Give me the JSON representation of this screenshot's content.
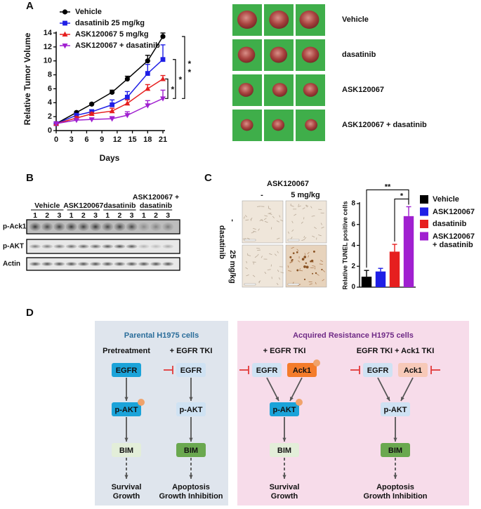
{
  "panel_labels": [
    "A",
    "B",
    "C",
    "D"
  ],
  "chart_data": [
    {
      "type": "line",
      "x": [
        0,
        4,
        7,
        11,
        14,
        18,
        21
      ],
      "xlabel": "Days",
      "ylabel": "Relative Tumor Volume",
      "xlim": [
        0,
        21
      ],
      "xticks": [
        0,
        3,
        6,
        9,
        12,
        15,
        18,
        21
      ],
      "ylim": [
        0,
        14
      ],
      "yticks": [
        0,
        2,
        4,
        6,
        8,
        10,
        12,
        14
      ],
      "legend": "upper left",
      "series": [
        {
          "name": "Vehicle",
          "color": "#000000",
          "marker": "circle",
          "values": [
            1,
            2.6,
            3.8,
            5.5,
            7.4,
            10,
            13.5
          ],
          "errors": [
            0,
            0.1,
            0.15,
            0.3,
            0.4,
            0.8,
            0.5
          ]
        },
        {
          "name": "dasatinib 25 mg/kg",
          "color": "#1f1fe6",
          "marker": "square",
          "values": [
            1,
            2.2,
            2.7,
            3.7,
            4.8,
            8.2,
            10.2
          ],
          "errors": [
            0,
            0.2,
            0.3,
            0.7,
            0.8,
            1.3,
            2.1
          ]
        },
        {
          "name": "ASK120067 5 mg/kg",
          "color": "#e61f1f",
          "marker": "triangle",
          "values": [
            1,
            1.8,
            2.4,
            2.8,
            3.9,
            6,
            7.4
          ],
          "errors": [
            0,
            0.2,
            0.2,
            0.4,
            0.5,
            0.6,
            0.5
          ]
        },
        {
          "name": "ASK120067 + dasatinib",
          "color": "#a020d0",
          "marker": "triangle-down",
          "values": [
            1,
            1.5,
            1.6,
            1.7,
            2.2,
            3.6,
            4.6
          ],
          "errors": [
            0,
            0.1,
            0.2,
            0.3,
            0.5,
            0.7,
            1.2
          ]
        }
      ],
      "annotations": [
        "*",
        "*",
        "**"
      ]
    },
    {
      "type": "bar",
      "ylabel": "Relative TUNEL positive cells",
      "categories": [
        "Vehicle",
        "ASK120067",
        "dasatinib",
        "ASK120067 + dasatinib"
      ],
      "values": [
        1.0,
        1.5,
        3.4,
        6.8
      ],
      "errors": [
        0.6,
        0.3,
        0.7,
        0.9
      ],
      "colors": [
        "#000000",
        "#1f1fe6",
        "#e61f1f",
        "#a020d0"
      ],
      "ylim": [
        0,
        8
      ],
      "yticks": [
        0,
        2,
        4,
        6,
        8
      ],
      "legend": "right",
      "annotations": [
        "**",
        "*"
      ]
    }
  ],
  "tumor_photos": {
    "rows": [
      "Vehicle",
      "dasatinib",
      "ASK120067",
      "ASK120067 + dasatinib"
    ]
  },
  "western_blot": {
    "groups": [
      [
        "Vehicle"
      ],
      [
        "ASK120067"
      ],
      [
        "dasatinib"
      ],
      [
        "ASK120067 +",
        "dasatinib"
      ]
    ],
    "lanes": [
      "1",
      "2",
      "3"
    ],
    "rows": [
      "p-Ack1",
      "p-AKT",
      "Actin"
    ]
  },
  "tunel_images": {
    "column_title": "ASK120067",
    "columns": [
      "-",
      "5 mg/kg"
    ],
    "row_title": "dasatinib",
    "rows": [
      "-",
      "25 mg/kg"
    ]
  },
  "diagram": {
    "panels": [
      {
        "title": "Parental H1975 cells",
        "columns": [
          {
            "heading": "Pretreatment",
            "nodes": [
              {
                "label": "EGFR",
                "color": "#1ba3d9"
              },
              {
                "label": "p-AKT",
                "color": "#1ba3d9",
                "phospho": true
              },
              {
                "label": "BIM",
                "color": "#e3eed9"
              }
            ],
            "outcome": [
              "Survival",
              "Growth"
            ]
          },
          {
            "heading": "+ EGFR TKI",
            "nodes": [
              {
                "label": "EGFR",
                "color": "#cfe2f3",
                "inhibited": "left"
              },
              {
                "label": "p-AKT",
                "color": "#cfe2f3"
              },
              {
                "label": "BIM",
                "color": "#6aa84f"
              }
            ],
            "outcome": [
              "Apoptosis",
              "Growth Inhibition"
            ]
          }
        ]
      },
      {
        "title": "Acquired Resistance  H1975 cells",
        "columns": [
          {
            "heading": "+ EGFR TKI",
            "nodes": [
              {
                "label": "EGFR",
                "color": "#cfe2f3",
                "inhibited": "left"
              },
              {
                "label": "Ack1",
                "color": "#f47c2b",
                "phospho": true
              },
              {
                "label": "p-AKT",
                "color": "#1ba3d9",
                "phospho": true
              },
              {
                "label": "BIM",
                "color": "#e3eed9"
              }
            ],
            "outcome": [
              "Survival",
              "Growth"
            ]
          },
          {
            "heading": "EGFR TKI + Ack1 TKI",
            "nodes": [
              {
                "label": "EGFR",
                "color": "#cfe2f3",
                "inhibited": "left"
              },
              {
                "label": "Ack1",
                "color": "#f7c9b8",
                "inhibited": "right"
              },
              {
                "label": "p-AKT",
                "color": "#cfe2f3"
              },
              {
                "label": "BIM",
                "color": "#6aa84f"
              }
            ],
            "outcome": [
              "Apoptosis",
              "Growth Inhibition"
            ]
          }
        ]
      }
    ]
  }
}
